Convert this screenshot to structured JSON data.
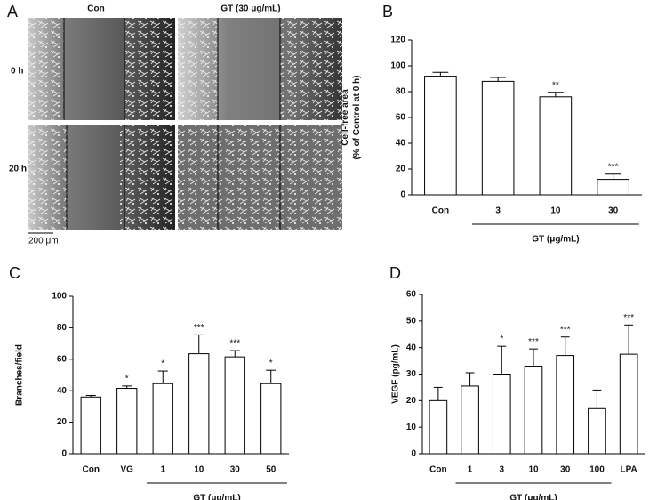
{
  "panel_a": {
    "panel": "A",
    "columns": [
      "Con",
      "GT (30 μg/mL)"
    ],
    "rows": [
      "0 h",
      "20 h"
    ],
    "scale_bar": "200 μm"
  },
  "chart_data": [
    {
      "type": "bar",
      "panel": "B",
      "ylabel": [
        "Cell-free area",
        "(% of Control at 0 h)"
      ],
      "categories": [
        "Con",
        "3",
        "10",
        "30"
      ],
      "values": [
        92,
        88,
        76,
        12
      ],
      "errors": [
        3,
        3,
        3.5,
        4
      ],
      "annotations": [
        null,
        null,
        "**",
        "***"
      ],
      "group_label": "GT (μg/mL)",
      "ylim": [
        0,
        120
      ],
      "yticks": [
        0,
        20,
        40,
        60,
        80,
        100,
        120
      ],
      "color": "#ffffff"
    },
    {
      "type": "bar",
      "panel": "C",
      "ylabel": [
        "Branches/field"
      ],
      "categories": [
        "Con",
        "VG",
        "1",
        "10",
        "30",
        "50"
      ],
      "values": [
        36,
        41.5,
        44.5,
        63.5,
        61.5,
        44.5
      ],
      "errors": [
        1,
        1.5,
        8,
        12,
        4,
        8.5
      ],
      "annotations": [
        null,
        "*",
        "*",
        "***",
        "***",
        "*"
      ],
      "group_label": "GT (μg/mL)",
      "ylim": [
        0,
        100
      ],
      "yticks": [
        0,
        20,
        40,
        60,
        80,
        100
      ],
      "color": "#ffffff"
    },
    {
      "type": "bar",
      "panel": "D",
      "ylabel": [
        "VEGF (pg/mL)"
      ],
      "categories": [
        "Con",
        "1",
        "3",
        "10",
        "30",
        "100",
        "LPA"
      ],
      "values": [
        20,
        25.5,
        30,
        33,
        37,
        17,
        37.5
      ],
      "errors": [
        5,
        5,
        10.5,
        6.5,
        7,
        7,
        11
      ],
      "annotations": [
        null,
        null,
        "*",
        "***",
        "***",
        null,
        "***"
      ],
      "group_label": "GT (μg/mL)",
      "ylim": [
        0,
        60
      ],
      "yticks": [
        0,
        10,
        20,
        30,
        40,
        50,
        60
      ],
      "color": "#ffffff"
    }
  ]
}
